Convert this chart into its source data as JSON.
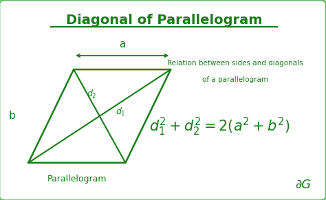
{
  "title": "Diagonal of Parallelogram",
  "title_color": "#1a7a1a",
  "bg_color": "#ffffff",
  "border_color": "#66bb66",
  "green_color": "#1a7a1a",
  "parallelogram": {
    "BL": [
      0.08,
      0.18
    ],
    "TL": [
      0.22,
      0.65
    ],
    "TR": [
      0.52,
      0.65
    ],
    "BR": [
      0.38,
      0.18
    ],
    "label": "Parallelogram",
    "side_a_label": "a",
    "side_b_label": "b"
  },
  "relation_text_line1": "Relation between sides and diagonals",
  "relation_text_line2": "of a parallelogram",
  "logo": "∂G"
}
